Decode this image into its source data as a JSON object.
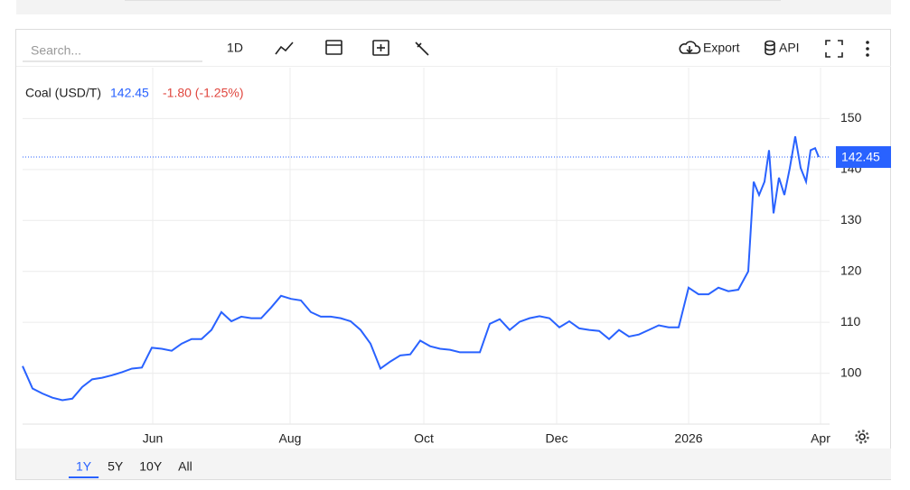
{
  "toolbar": {
    "search_placeholder": "Search...",
    "interval": "1D",
    "export": "Export",
    "api": "API"
  },
  "ranges": [
    "1Y",
    "5Y",
    "10Y",
    "All"
  ],
  "chart_data": {
    "type": "line",
    "change_label": "-1.80 (-1.25%)",
    "x": [
      0,
      4.4,
      8.8,
      13.2,
      17.6,
      22,
      26.4,
      30.8,
      35.2,
      39.6,
      44,
      48.4,
      52.8,
      57.2,
      61.6,
      66,
      70.4,
      74.8,
      79.2,
      83.6,
      88,
      92.4,
      96.8,
      101.2,
      105.6,
      110,
      114.4,
      118.8,
      123.2,
      127.6,
      132,
      136.4,
      140.8,
      145.2,
      149.6,
      154,
      158.4,
      162.8,
      167.2,
      171.6,
      176,
      180.4,
      184.8,
      189.2,
      193.6,
      198,
      202.4,
      206.8,
      211.2,
      215.6,
      220,
      224.4,
      228.8,
      233.2,
      237.6,
      242,
      246.4,
      250.8,
      255.2,
      259.6,
      264,
      268.4,
      272.8,
      277.2,
      281.6,
      286,
      290.4,
      294.8,
      299.2,
      303.6,
      308,
      312.4,
      316.8,
      321.2,
      323.6,
      326,
      328.4,
      330.4,
      332.4,
      334.8,
      337.2,
      339.6,
      342,
      344.4,
      346.8,
      348.8,
      350.8,
      352.4
    ],
    "series": [
      {
        "name": "Coal (USD/T)",
        "color": "#2962ff",
        "values": [
          101.4,
          97,
          96,
          95.2,
          94.7,
          95,
          97.3,
          98.8,
          99.1,
          99.6,
          100.2,
          100.9,
          101.1,
          105,
          104.8,
          104.4,
          105.8,
          106.7,
          106.7,
          108.5,
          112,
          110.2,
          111.1,
          110.8,
          110.8,
          112.9,
          115.2,
          114.6,
          114.3,
          112,
          111.1,
          111.1,
          110.8,
          110.2,
          108.5,
          105.8,
          100.9,
          102.3,
          103.5,
          103.7,
          106.4,
          105.3,
          104.8,
          104.6,
          104.1,
          104.1,
          104.1,
          109.7,
          110.6,
          108.5,
          110.1,
          110.8,
          111.2,
          110.8,
          109,
          110.2,
          108.8,
          108.5,
          108.3,
          106.7,
          108.5,
          107.2,
          107.6,
          108.5,
          109.4,
          109,
          109,
          116.8,
          115.5,
          115.5,
          116.8,
          116.1,
          116.4,
          120,
          137.6,
          135,
          137.6,
          143.8,
          131.4,
          138.4,
          135,
          140.3,
          146.5,
          140.3,
          137.6,
          143.8,
          144.2,
          142.45
        ]
      }
    ],
    "xlim": [
      0,
      357.2
    ],
    "xticks": [
      {
        "value": 57.6,
        "label": "Jun"
      },
      {
        "value": 118.4,
        "label": "Aug"
      },
      {
        "value": 177.6,
        "label": "Oct"
      },
      {
        "value": 236.4,
        "label": "Dec"
      },
      {
        "value": 294.8,
        "label": "2026"
      },
      {
        "value": 353.2,
        "label": "Apr"
      }
    ],
    "ylim": [
      90,
      160
    ],
    "yticks": [
      100,
      110,
      120,
      130,
      140,
      150
    ],
    "grid": true
  }
}
